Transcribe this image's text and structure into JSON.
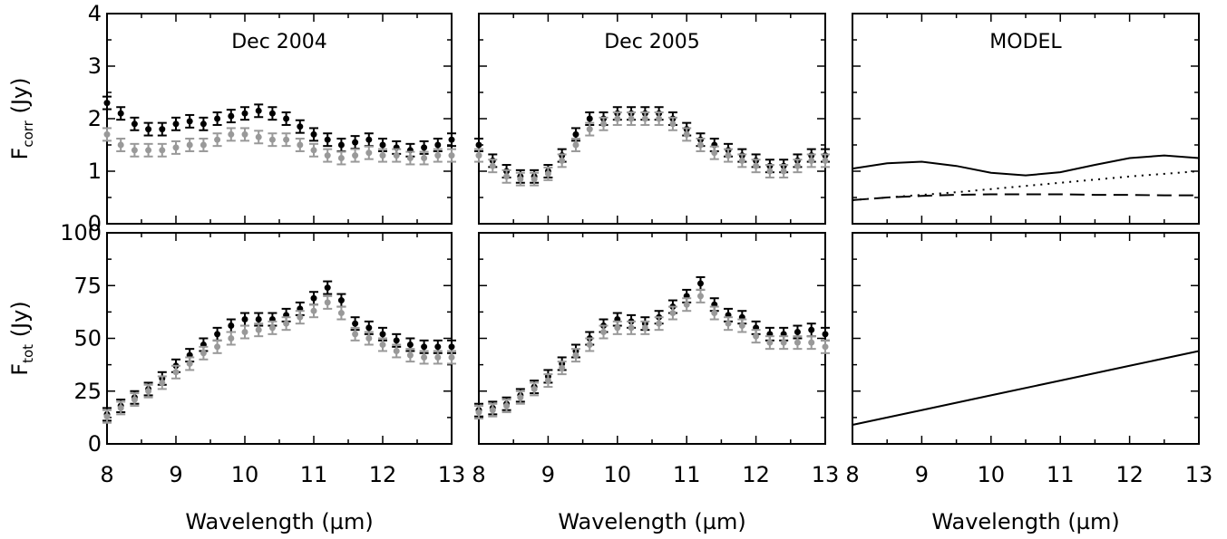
{
  "chart_data": [
    {
      "type": "scatter",
      "panel": "top-left",
      "title": "Dec 2004",
      "ylabel": "F_corr (Jy)",
      "xlabel": "",
      "xlim": [
        8,
        13
      ],
      "ylim": [
        0,
        4
      ],
      "xticks": [
        "8",
        "9",
        "10",
        "11",
        "12",
        "13"
      ],
      "yticks": [
        "0",
        "1",
        "2",
        "3",
        "4"
      ],
      "series": [
        {
          "color": "#000000",
          "x": [
            8.0,
            8.2,
            8.4,
            8.6,
            8.8,
            9.0,
            9.2,
            9.4,
            9.6,
            9.8,
            10.0,
            10.2,
            10.4,
            10.6,
            10.8,
            11.0,
            11.2,
            11.4,
            11.6,
            11.8,
            12.0,
            12.2,
            12.4,
            12.6,
            12.8,
            13.0
          ],
          "y": [
            2.3,
            2.1,
            1.9,
            1.8,
            1.8,
            1.9,
            1.95,
            1.9,
            2.0,
            2.05,
            2.1,
            2.15,
            2.1,
            2.0,
            1.85,
            1.7,
            1.6,
            1.5,
            1.55,
            1.6,
            1.5,
            1.45,
            1.4,
            1.45,
            1.5,
            1.6
          ]
        },
        {
          "color": "#999999",
          "x": [
            8.0,
            8.2,
            8.4,
            8.6,
            8.8,
            9.0,
            9.2,
            9.4,
            9.6,
            9.8,
            10.0,
            10.2,
            10.4,
            10.6,
            10.8,
            11.0,
            11.2,
            11.4,
            11.6,
            11.8,
            12.0,
            12.2,
            12.4,
            12.6,
            12.8,
            13.0
          ],
          "y": [
            1.7,
            1.5,
            1.4,
            1.4,
            1.4,
            1.45,
            1.5,
            1.5,
            1.6,
            1.7,
            1.7,
            1.65,
            1.6,
            1.6,
            1.5,
            1.4,
            1.3,
            1.25,
            1.3,
            1.35,
            1.3,
            1.3,
            1.25,
            1.25,
            1.3,
            1.3
          ]
        }
      ]
    },
    {
      "type": "scatter",
      "panel": "top-middle",
      "title": "Dec 2005",
      "xlabel": "",
      "ylabel": "",
      "xlim": [
        8,
        13
      ],
      "ylim": [
        0,
        4
      ],
      "xticks": [
        "8",
        "9",
        "10",
        "11",
        "12",
        "13"
      ],
      "series": [
        {
          "color": "#000000",
          "x": [
            8.0,
            8.2,
            8.4,
            8.6,
            8.8,
            9.0,
            9.2,
            9.4,
            9.6,
            9.8,
            10.0,
            10.2,
            10.4,
            10.6,
            10.8,
            11.0,
            11.2,
            11.4,
            11.6,
            11.8,
            12.0,
            12.2,
            12.4,
            12.6,
            12.8,
            13.0
          ],
          "y": [
            1.5,
            1.2,
            1.0,
            0.9,
            0.9,
            1.0,
            1.3,
            1.7,
            2.0,
            2.0,
            2.1,
            2.1,
            2.1,
            2.1,
            2.0,
            1.8,
            1.6,
            1.5,
            1.4,
            1.3,
            1.2,
            1.1,
            1.1,
            1.2,
            1.3,
            1.3
          ]
        },
        {
          "color": "#999999",
          "x": [
            8.0,
            8.2,
            8.4,
            8.6,
            8.8,
            9.0,
            9.2,
            9.4,
            9.6,
            9.8,
            10.0,
            10.2,
            10.4,
            10.6,
            10.8,
            11.0,
            11.2,
            11.4,
            11.6,
            11.8,
            12.0,
            12.2,
            12.4,
            12.6,
            12.8,
            13.0
          ],
          "y": [
            1.3,
            1.1,
            0.9,
            0.85,
            0.85,
            0.95,
            1.2,
            1.5,
            1.8,
            1.9,
            2.0,
            2.0,
            2.0,
            2.0,
            1.9,
            1.7,
            1.5,
            1.35,
            1.3,
            1.2,
            1.1,
            1.0,
            1.0,
            1.1,
            1.2,
            1.2
          ]
        }
      ]
    },
    {
      "type": "line",
      "panel": "top-right",
      "title": "MODEL",
      "xlabel": "",
      "ylabel": "",
      "xlim": [
        8,
        13
      ],
      "ylim": [
        0,
        4
      ],
      "xticks": [
        "8",
        "9",
        "10",
        "11",
        "12",
        "13"
      ],
      "series": [
        {
          "style": "solid",
          "x": [
            8.0,
            8.5,
            9.0,
            9.5,
            10.0,
            10.5,
            11.0,
            11.5,
            12.0,
            12.5,
            13.0
          ],
          "y": [
            1.05,
            1.15,
            1.18,
            1.1,
            0.97,
            0.92,
            0.98,
            1.12,
            1.25,
            1.3,
            1.25
          ]
        },
        {
          "style": "dotted",
          "x": [
            8.0,
            8.5,
            9.0,
            9.5,
            10.0,
            10.5,
            11.0,
            11.5,
            12.0,
            12.5,
            13.0
          ],
          "y": [
            0.45,
            0.5,
            0.55,
            0.6,
            0.66,
            0.72,
            0.78,
            0.84,
            0.9,
            0.95,
            1.0
          ]
        },
        {
          "style": "dashed",
          "x": [
            8.0,
            8.5,
            9.0,
            9.5,
            10.0,
            10.5,
            11.0,
            11.5,
            12.0,
            12.5,
            13.0
          ],
          "y": [
            0.45,
            0.5,
            0.53,
            0.55,
            0.56,
            0.56,
            0.56,
            0.55,
            0.55,
            0.54,
            0.54
          ]
        }
      ]
    },
    {
      "type": "scatter",
      "panel": "bottom-left",
      "title": "",
      "ylabel": "F_tot (Jy)",
      "xlabel": "Wavelength (µm)",
      "xlim": [
        8,
        13
      ],
      "ylim": [
        0,
        100
      ],
      "xticks": [
        "8",
        "9",
        "10",
        "11",
        "12",
        "13"
      ],
      "yticks": [
        "0",
        "25",
        "50",
        "75",
        "100"
      ],
      "series": [
        {
          "color": "#000000",
          "x": [
            8.0,
            8.2,
            8.4,
            8.6,
            8.8,
            9.0,
            9.2,
            9.4,
            9.6,
            9.8,
            10.0,
            10.2,
            10.4,
            10.6,
            10.8,
            11.0,
            11.2,
            11.4,
            11.6,
            11.8,
            12.0,
            12.2,
            12.4,
            12.6,
            12.8,
            13.0
          ],
          "y": [
            14,
            18,
            22,
            26,
            31,
            37,
            42,
            47,
            52,
            56,
            59,
            59,
            59,
            61,
            64,
            69,
            74,
            68,
            57,
            55,
            52,
            49,
            47,
            46,
            46,
            46
          ]
        },
        {
          "color": "#999999",
          "x": [
            8.0,
            8.2,
            8.4,
            8.6,
            8.8,
            9.0,
            9.2,
            9.4,
            9.6,
            9.8,
            10.0,
            10.2,
            10.4,
            10.6,
            10.8,
            11.0,
            11.2,
            11.4,
            11.6,
            11.8,
            12.0,
            12.2,
            12.4,
            12.6,
            12.8,
            13.0
          ],
          "y": [
            13,
            17,
            21,
            25,
            29,
            34,
            38,
            43,
            46,
            50,
            53,
            54,
            55,
            57,
            60,
            63,
            67,
            62,
            52,
            50,
            47,
            44,
            42,
            41,
            41,
            41
          ]
        }
      ]
    },
    {
      "type": "scatter",
      "panel": "bottom-middle",
      "title": "",
      "ylabel": "",
      "xlabel": "Wavelength (µm)",
      "xlim": [
        8,
        13
      ],
      "ylim": [
        0,
        100
      ],
      "xticks": [
        "8",
        "9",
        "10",
        "11",
        "12",
        "13"
      ],
      "series": [
        {
          "color": "#000000",
          "x": [
            8.0,
            8.2,
            8.4,
            8.6,
            8.8,
            9.0,
            9.2,
            9.4,
            9.6,
            9.8,
            10.0,
            10.2,
            10.4,
            10.6,
            10.8,
            11.0,
            11.2,
            11.4,
            11.6,
            11.8,
            12.0,
            12.2,
            12.4,
            12.6,
            12.8,
            13.0
          ],
          "y": [
            16,
            17,
            19,
            23,
            27,
            32,
            38,
            44,
            50,
            56,
            59,
            58,
            57,
            60,
            65,
            70,
            76,
            66,
            61,
            60,
            55,
            52,
            52,
            53,
            54,
            52
          ]
        },
        {
          "color": "#999999",
          "x": [
            8.0,
            8.2,
            8.4,
            8.6,
            8.8,
            9.0,
            9.2,
            9.4,
            9.6,
            9.8,
            10.0,
            10.2,
            10.4,
            10.6,
            10.8,
            11.0,
            11.2,
            11.4,
            11.6,
            11.8,
            12.0,
            12.2,
            12.4,
            12.6,
            12.8,
            13.0
          ],
          "y": [
            15,
            16,
            18,
            22,
            26,
            30,
            36,
            42,
            47,
            53,
            55,
            55,
            55,
            57,
            62,
            66,
            70,
            62,
            57,
            56,
            51,
            48,
            48,
            48,
            48,
            46
          ]
        }
      ]
    },
    {
      "type": "line",
      "panel": "bottom-right",
      "title": "",
      "ylabel": "",
      "xlabel": "Wavelength (µm)",
      "xlim": [
        8,
        13
      ],
      "ylim": [
        0,
        100
      ],
      "xticks": [
        "8",
        "9",
        "10",
        "11",
        "12",
        "13"
      ],
      "series": [
        {
          "style": "solid",
          "x": [
            8.0,
            9.0,
            10.0,
            11.0,
            12.0,
            13.0
          ],
          "y": [
            9,
            16,
            23,
            30,
            37,
            44
          ]
        }
      ]
    }
  ]
}
